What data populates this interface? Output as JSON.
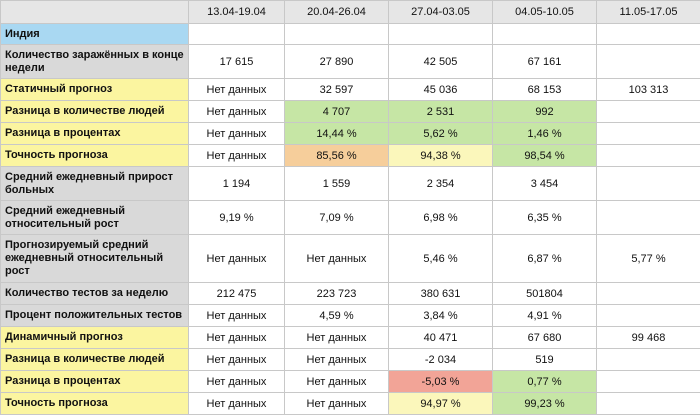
{
  "header": {
    "columns": [
      "13.04-19.04",
      "20.04-26.04",
      "27.04-03.05",
      "04.05-10.05",
      "11.05-17.05"
    ]
  },
  "title_row": {
    "label": "Индия"
  },
  "rows": [
    {
      "label": "Количество заражённых в конце недели",
      "style": "gray",
      "values": [
        "17 615",
        "27 890",
        "42 505",
        "67 161",
        ""
      ],
      "cells": [
        "",
        "",
        "",
        "",
        ""
      ]
    },
    {
      "label": "Статичный прогноз",
      "style": "yellow",
      "values": [
        "Нет данных",
        "32 597",
        "45 036",
        "68 153",
        "103 313"
      ],
      "cells": [
        "",
        "",
        "",
        "",
        ""
      ]
    },
    {
      "label": "Разница в количестве людей",
      "style": "yellow",
      "values": [
        "Нет данных",
        "4 707",
        "2 531",
        "992",
        ""
      ],
      "cells": [
        "",
        "green",
        "green",
        "green",
        ""
      ]
    },
    {
      "label": "Разница в процентах",
      "style": "yellow",
      "values": [
        "Нет данных",
        "14,44 %",
        "5,62 %",
        "1,46 %",
        ""
      ],
      "cells": [
        "",
        "green",
        "green",
        "green",
        ""
      ]
    },
    {
      "label": "Точность прогноза",
      "style": "yellow",
      "values": [
        "Нет данных",
        "85,56 %",
        "94,38 %",
        "98,54 %",
        ""
      ],
      "cells": [
        "",
        "orange",
        "lightyellow",
        "green",
        ""
      ]
    },
    {
      "label": "Средний ежедневный прирост больных",
      "style": "gray",
      "values": [
        "1 194",
        "1 559",
        "2 354",
        "3 454",
        ""
      ],
      "cells": [
        "",
        "",
        "",
        "",
        ""
      ]
    },
    {
      "label": "Средний ежедневный относительный рост",
      "style": "gray",
      "values": [
        "9,19 %",
        "7,09 %",
        "6,98 %",
        "6,35 %",
        ""
      ],
      "cells": [
        "",
        "",
        "",
        "",
        ""
      ]
    },
    {
      "label": "Прогнозируемый средний ежедневный  относительный рост",
      "style": "gray",
      "values": [
        "Нет данных",
        "Нет данных",
        "5,46 %",
        "6,87 %",
        "5,77 %"
      ],
      "cells": [
        "",
        "",
        "",
        "",
        ""
      ]
    },
    {
      "label": "Количество тестов за неделю",
      "style": "gray",
      "values": [
        "212 475",
        "223 723",
        "380 631",
        "501804",
        ""
      ],
      "cells": [
        "",
        "",
        "",
        "",
        ""
      ]
    },
    {
      "label": "Процент положительных тестов",
      "style": "gray",
      "values": [
        "Нет данных",
        "4,59 %",
        "3,84 %",
        "4,91 %",
        ""
      ],
      "cells": [
        "",
        "",
        "",
        "",
        ""
      ]
    },
    {
      "label": "Динамичный прогноз",
      "style": "yellow",
      "values": [
        "Нет данных",
        "Нет данных",
        "40 471",
        "67 680",
        "99 468"
      ],
      "cells": [
        "",
        "",
        "",
        "",
        ""
      ]
    },
    {
      "label": "Разница в количестве людей",
      "style": "yellow",
      "values": [
        "Нет данных",
        "Нет данных",
        "-2 034",
        "519",
        ""
      ],
      "cells": [
        "",
        "",
        "",
        "",
        ""
      ]
    },
    {
      "label": "Разница в процентах",
      "style": "yellow",
      "values": [
        "Нет данных",
        "Нет данных",
        "-5,03 %",
        "0,77 %",
        ""
      ],
      "cells": [
        "",
        "",
        "red",
        "green",
        ""
      ]
    },
    {
      "label": "Точность прогноза",
      "style": "yellow",
      "values": [
        "Нет данных",
        "Нет данных",
        "94,97 %",
        "99,23 %",
        ""
      ],
      "cells": [
        "",
        "",
        "lightyellow",
        "green",
        ""
      ]
    }
  ],
  "colors": {
    "label_yellow": "#fbf5a0",
    "label_gray": "#d9d9d9",
    "label_blue": "#a9d8f2",
    "green": "#c6e6a5",
    "orange": "#f6ce9b",
    "lightyellow": "#fbf7bb",
    "red": "#f2a497"
  }
}
